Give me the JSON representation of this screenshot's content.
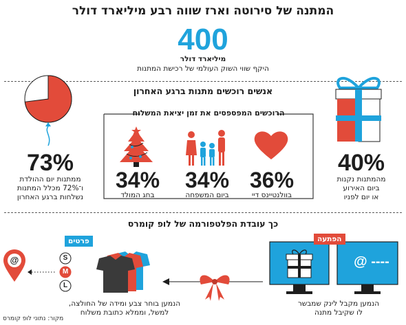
{
  "header": {
    "title": "המתנה של סירוטה וארז שווה רבע מיליארד דולר",
    "big_number": "400",
    "big_number_unit": "מיליארד דולר",
    "big_number_desc": "היקף שווי השוק העולמי של רכישת המתנות"
  },
  "section1": {
    "title": "אנשים רוכשים מתנות ברגע האחרון",
    "subtitle": "הרוכשים המפספסים את זמן יציאת המשלוח",
    "stat_gift": {
      "value": "40%",
      "caption": [
        "מהמתנות נקנות",
        "ביום האירוע",
        "או יום לפניו"
      ]
    },
    "stat_valentine": {
      "value": "36%",
      "caption": "בוולנטיינס דיי"
    },
    "stat_family": {
      "value": "34%",
      "caption": "ביום המשפחה"
    },
    "stat_christmas": {
      "value": "34%",
      "caption": "בחג המולד"
    },
    "stat_birthday": {
      "value": "73%",
      "caption": [
        "ממתנות יום ההולדת",
        "ו־72% מכלל המתנות",
        "נשלחות ברגע האחרון"
      ],
      "pie_fraction": 0.73
    }
  },
  "section2": {
    "title": "כך עובדת הפלטפורמה של לופ קומרס",
    "tag_surprise": "הפתעה",
    "tag_details": "פרטים",
    "screen_text": "@ ----",
    "sizes": [
      "S",
      "M",
      "L"
    ],
    "map_icon_symbol": "@",
    "step1_caption": [
      "הנמען מקבל לינק שמבשר",
      "לו שקיבל מתנה"
    ],
    "step2_caption": [
      "הנמען בוחר צבע ומידה של החולצה,",
      "למשל, וממלא כתובת משלוח"
    ]
  },
  "source": "מקור: נתוני לופ קומרס",
  "colors": {
    "accent_blue": "#1fa3dc",
    "accent_red": "#e24b3a",
    "dark": "#3a3a3a"
  }
}
